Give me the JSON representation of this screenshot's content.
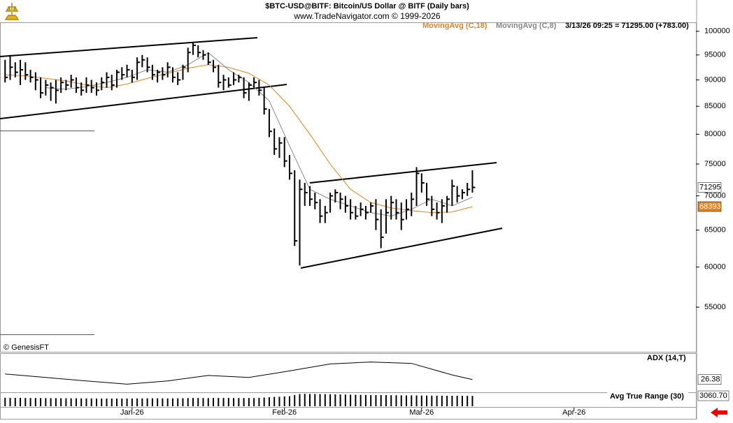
{
  "header": {
    "title": "$BTC-USD@BITF:  Bitcoin/US Dollar @ BITF  (Daily bars)",
    "source": "www.TradeNavigator.com © 1999-2026"
  },
  "chart_data": {
    "type": "ohlc",
    "color": "#000000",
    "log_scale": true,
    "quote": "3/13/26 09:25 = 71295.00 (+783.00)",
    "copyright": "© GenesisFT",
    "xlim": [
      -1,
      136
    ],
    "xticks": [
      {
        "value": 25,
        "label": "Jan-26"
      },
      {
        "value": 55,
        "label": "Feb-26"
      },
      {
        "value": 82,
        "label": "Mar-26"
      },
      {
        "value": 112,
        "label": "Apr-26"
      }
    ],
    "ylim": [
      51000,
      101800
    ],
    "yticks": [
      55000,
      60000,
      65000,
      70000,
      75000,
      80000,
      85000,
      90000,
      95000,
      100000
    ],
    "bars": [
      [
        94000,
        89500,
        90500
      ],
      [
        95000,
        90000,
        92500
      ],
      [
        93500,
        90500,
        91500
      ],
      [
        94000,
        89000,
        92000
      ],
      [
        93500,
        90000,
        91000
      ],
      [
        92000,
        89500,
        90500
      ],
      [
        91500,
        88000,
        90000
      ],
      [
        90500,
        86500,
        87500
      ],
      [
        90000,
        87000,
        89000
      ],
      [
        89500,
        86000,
        88500
      ],
      [
        90000,
        85500,
        88000
      ],
      [
        90500,
        87500,
        89500
      ],
      [
        90000,
        88000,
        89000
      ],
      [
        91000,
        88500,
        90000
      ],
      [
        90500,
        87500,
        88500
      ],
      [
        89500,
        87000,
        88000
      ],
      [
        90500,
        87500,
        89000
      ],
      [
        90000,
        87500,
        88500
      ],
      [
        89500,
        87000,
        88000
      ],
      [
        90500,
        88000,
        89500
      ],
      [
        91500,
        88500,
        90500
      ],
      [
        91000,
        88000,
        89000
      ],
      [
        92000,
        88500,
        91500
      ],
      [
        92500,
        90000,
        91000
      ],
      [
        93000,
        90500,
        92000
      ],
      [
        92000,
        89500,
        90500
      ],
      [
        94500,
        90000,
        93500
      ],
      [
        95000,
        92500,
        94000
      ],
      [
        94500,
        91500,
        92500
      ],
      [
        93000,
        90000,
        91000
      ],
      [
        92000,
        89500,
        91500
      ],
      [
        92500,
        90000,
        91000
      ],
      [
        93500,
        90500,
        92500
      ],
      [
        92500,
        89500,
        90500
      ],
      [
        91500,
        89000,
        90000
      ],
      [
        93000,
        90000,
        92500
      ],
      [
        96500,
        91500,
        95500
      ],
      [
        97500,
        95000,
        97000
      ],
      [
        97000,
        94500,
        95500
      ],
      [
        96000,
        94000,
        95000
      ],
      [
        95500,
        93000,
        93500
      ],
      [
        94000,
        91500,
        92500
      ],
      [
        93000,
        88500,
        89500
      ],
      [
        91000,
        88000,
        90000
      ],
      [
        90500,
        88500,
        89000
      ],
      [
        91500,
        89000,
        90000
      ],
      [
        91000,
        89500,
        90500
      ],
      [
        90500,
        86500,
        87500
      ],
      [
        89500,
        86000,
        89000
      ],
      [
        90500,
        88500,
        89500
      ],
      [
        90000,
        87000,
        88000
      ],
      [
        88500,
        83500,
        84500
      ],
      [
        84500,
        79500,
        80500
      ],
      [
        81000,
        76500,
        77500
      ],
      [
        79500,
        76000,
        78500
      ],
      [
        79500,
        74500,
        75500
      ],
      [
        76500,
        72500,
        73500
      ],
      [
        74000,
        62800,
        63500
      ],
      [
        72500,
        60200,
        71000
      ],
      [
        72000,
        68500,
        70500
      ],
      [
        71500,
        68500,
        69500
      ],
      [
        70500,
        68000,
        69000
      ],
      [
        69500,
        66000,
        67000
      ],
      [
        68500,
        66000,
        67500
      ],
      [
        70500,
        67500,
        70000
      ],
      [
        71000,
        69000,
        70500
      ],
      [
        70500,
        68000,
        69500
      ],
      [
        70000,
        67500,
        68500
      ],
      [
        69500,
        66500,
        67500
      ],
      [
        68500,
        66500,
        67000
      ],
      [
        69000,
        67000,
        68000
      ],
      [
        68500,
        66500,
        67500
      ],
      [
        69000,
        67500,
        68500
      ],
      [
        69500,
        65000,
        66500
      ],
      [
        68000,
        62500,
        64000
      ],
      [
        69500,
        64500,
        67500
      ],
      [
        70000,
        66500,
        69000
      ],
      [
        69500,
        66500,
        67500
      ],
      [
        69000,
        65000,
        66500
      ],
      [
        69500,
        66500,
        68000
      ],
      [
        70500,
        67000,
        69500
      ],
      [
        74500,
        68500,
        73500
      ],
      [
        73500,
        70500,
        72000
      ],
      [
        72000,
        68500,
        69500
      ],
      [
        70000,
        67000,
        68000
      ],
      [
        69000,
        66500,
        67500
      ],
      [
        69500,
        66000,
        68500
      ],
      [
        70000,
        67500,
        69500
      ],
      [
        72500,
        68500,
        71500
      ],
      [
        71500,
        69000,
        70000
      ],
      [
        71000,
        69500,
        70500
      ],
      [
        72000,
        70000,
        71000
      ],
      [
        74000,
        70500,
        71295
      ]
    ],
    "moving_averages": [
      {
        "name": "MovingAvg (C,18)",
        "color": "#e8821e",
        "x": [
          0,
          4,
          8,
          12,
          16,
          20,
          24,
          28,
          32,
          36,
          40,
          44,
          48,
          52,
          56,
          60,
          64,
          68,
          72,
          76,
          80,
          84,
          88,
          92
        ],
        "values": [
          91000,
          90800,
          90300,
          89800,
          89000,
          88500,
          89200,
          90300,
          91300,
          92300,
          93000,
          92500,
          91300,
          89000,
          85000,
          80000,
          75000,
          71000,
          69000,
          68200,
          67800,
          67500,
          67600,
          68393
        ]
      },
      {
        "name": "MovingAvg (C,8)",
        "color": "#888888",
        "x": [
          8,
          12,
          16,
          20,
          24,
          28,
          32,
          36,
          40,
          44,
          48,
          52,
          56,
          60,
          64,
          68,
          72,
          76,
          80,
          84,
          88,
          92
        ],
        "values": [
          88500,
          88200,
          88700,
          89500,
          90500,
          92000,
          91500,
          93000,
          95500,
          92000,
          89500,
          86000,
          78000,
          71000,
          69500,
          68500,
          67500,
          67000,
          68000,
          69500,
          68500,
          69800
        ]
      }
    ],
    "indicators": [
      {
        "type": "line",
        "name": "ADX (14,T)",
        "color": "#000000",
        "ylim": [
          15,
          50
        ],
        "x": [
          0,
          8,
          16,
          24,
          32,
          40,
          48,
          56,
          64,
          72,
          80,
          88,
          92
        ],
        "values": [
          32,
          28.5,
          25,
          21.7,
          25,
          30.5,
          28.5,
          35,
          42,
          44,
          42.6,
          31,
          26.38
        ]
      },
      {
        "type": "bar",
        "name": "Avg True Range (30)",
        "color": "#000000",
        "ylim": [
          0,
          3700
        ],
        "last_label": "3060.70",
        "values": [
          2500,
          2480,
          2460,
          2450,
          2430,
          2420,
          2410,
          2400,
          2390,
          2380,
          2370,
          2360,
          2350,
          2340,
          2330,
          2320,
          2310,
          2300,
          2290,
          2280,
          2270,
          2260,
          2260,
          2270,
          2280,
          2290,
          2300,
          2320,
          2330,
          2340,
          2330,
          2320,
          2310,
          2320,
          2340,
          2360,
          2400,
          2420,
          2430,
          2420,
          2410,
          2420,
          2450,
          2440,
          2430,
          2420,
          2410,
          2420,
          2430,
          2420,
          2450,
          2550,
          2650,
          2750,
          2800,
          2900,
          2950,
          3300,
          3600,
          3650,
          3620,
          3600,
          3580,
          3560,
          3540,
          3500,
          3470,
          3440,
          3410,
          3380,
          3350,
          3320,
          3300,
          3280,
          3290,
          3270,
          3250,
          3230,
          3210,
          3190,
          3200,
          3190,
          3170,
          3150,
          3130,
          3110,
          3100,
          3090,
          3085,
          3075,
          3070,
          3065,
          3060.7
        ]
      }
    ]
  }
}
